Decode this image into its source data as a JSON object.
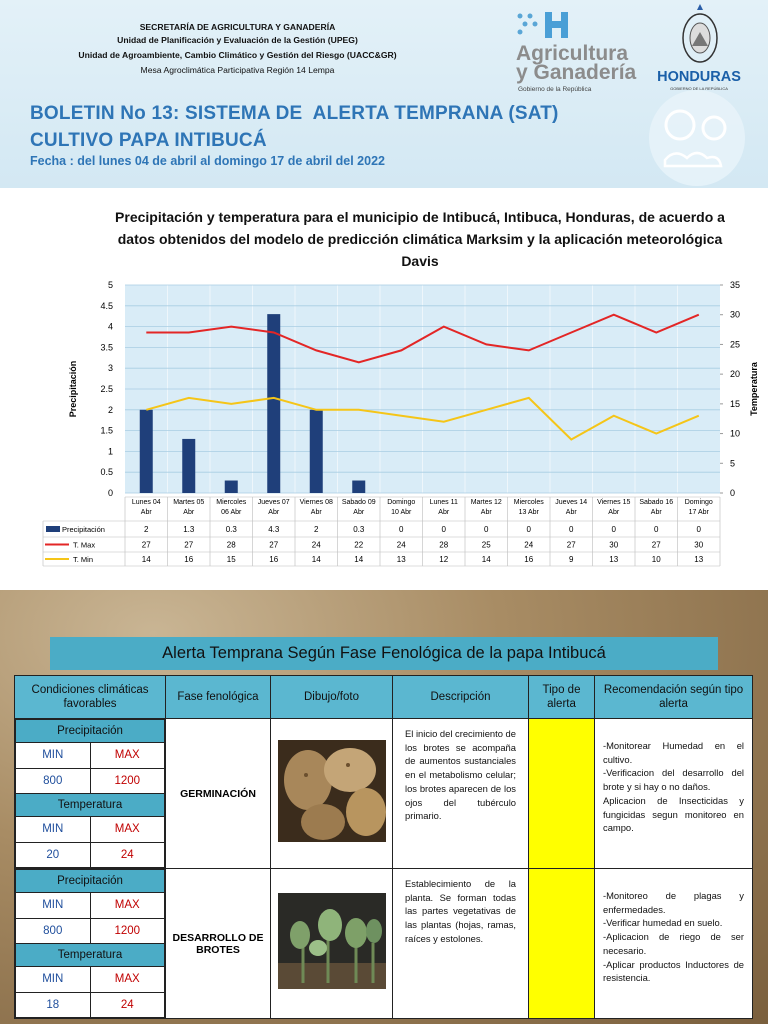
{
  "header": {
    "lines": [
      "SECRETARÍA DE AGRICULTURA Y GANADERÍA",
      "Unidad de Planificación y Evaluación de la Gestión (UPEG)",
      "Unidad de Agroambiente, Cambio Climático y Gestión del Riesgo (UACC&GR)",
      "Mesa Agroclimática Participativa Región 14 Lempa"
    ],
    "title_lines": [
      "BOLETIN No 13: SISTEMA DE  ALERTA TEMPRANA (SAT)",
      "CULTIVO PAPA INTIBUCÁ"
    ],
    "date": "Fecha : del lunes 04 de abril al domingo 17 de abril del 2022",
    "logo_sag": [
      "Agricultura",
      "y Ganadería",
      "Gobierno de la República"
    ],
    "logo_honduras": [
      "HONDURAS",
      "GOBIERNO DE LA REPÚBLICA"
    ]
  },
  "chart_data": {
    "type": "combo",
    "title": "Precipitación y temperatura para el municipio de Intibucá, Intibuca, Honduras, de acuerdo a datos obtenidos del modelo de predicción climática Marksim y la aplicación meteorológica Davis",
    "ylabel": "Precipitación",
    "y2label": "Temperatura",
    "categories": [
      "Lunes 04 Abr",
      "Martes 05 Abr",
      "Miercoles 06 Abr",
      "Jueves 07 Abr",
      "Viernes 08 Abr",
      "Sabado 09 Abr",
      "Domingo 10 Abr",
      "Lunes 11 Abr",
      "Martes 12 Abr",
      "Miercoles 13 Abr",
      "Jueves 14 Abr",
      "Viernes 15 Abr",
      "Sabado 16 Abr",
      "Domingo 17 Abr"
    ],
    "series": [
      {
        "name": "Precipitación",
        "type": "bar",
        "axis": "y",
        "color": "#1f3f7a",
        "values": [
          2,
          1.3,
          0.3,
          4.3,
          2,
          0.3,
          0,
          0,
          0,
          0,
          0,
          0,
          0,
          0
        ]
      },
      {
        "name": "T. Max",
        "type": "line",
        "axis": "y2",
        "color": "#e32626",
        "values": [
          27,
          27,
          28,
          27,
          24,
          22,
          24,
          28,
          25,
          24,
          27,
          30,
          27,
          30
        ]
      },
      {
        "name": "T. Min",
        "type": "line",
        "axis": "y2",
        "color": "#f5c518",
        "values": [
          14,
          16,
          15,
          16,
          14,
          14,
          13,
          12,
          14,
          16,
          9,
          13,
          10,
          13
        ]
      }
    ],
    "ylim": [
      0,
      5
    ],
    "yticks": [
      0,
      0.5,
      1,
      1.5,
      2,
      2.5,
      3,
      3.5,
      4,
      4.5,
      5
    ],
    "y2lim": [
      0,
      35
    ],
    "y2ticks": [
      0,
      5,
      10,
      15,
      20,
      25,
      30,
      35
    ],
    "grid": true
  },
  "alert_table": {
    "title": "Alerta Temprana Según Fase Fenológica  de la papa Intibucá",
    "headers": [
      "Condiciones climáticas  favorables",
      "Fase fenológica",
      "Dibujo/foto",
      "Descripción",
      "Tipo de alerta",
      "Recomendación según tipo alerta"
    ],
    "alert_color": "#ffff00",
    "rows": [
      {
        "precip_label": "Precipitación",
        "min_label": "MIN",
        "max_label": "MAX",
        "precip_min": 800,
        "precip_max": 1200,
        "temp_label": "Temperatura",
        "temp_min": 20,
        "temp_max": 24,
        "phase": "GERMINACIÓN",
        "description": "El inicio del crecimiento de los brotes se acompaña de aumentos sustanciales en el metabolismo celular; los brotes aparecen de los ojos del tubérculo primario.",
        "recommendation": [
          "-Monitorear Humedad en el cultivo.",
          "-Verificacion del desarrollo del brote y si hay o no daños.",
          "Aplicacion de Insecticidas y fungicidas segun monitoreo en campo."
        ]
      },
      {
        "precip_label": "Precipitación",
        "min_label": "MIN",
        "max_label": "MAX",
        "precip_min": 800,
        "precip_max": 1200,
        "temp_label": "Temperatura",
        "temp_min": 18,
        "temp_max": 24,
        "phase": "DESARROLLO DE BROTES",
        "description": "Establecimiento de la planta. Se forman todas las partes vegetativas de las plantas (hojas, ramas, raíces y estolones.",
        "recommendation": [
          "-Monitoreo de plagas y enfermedades.",
          "-Verificar humedad en suelo.",
          "-Aplicacion de riego de ser necesario.",
          "-Aplicar productos Inductores de resistencia."
        ]
      }
    ]
  }
}
